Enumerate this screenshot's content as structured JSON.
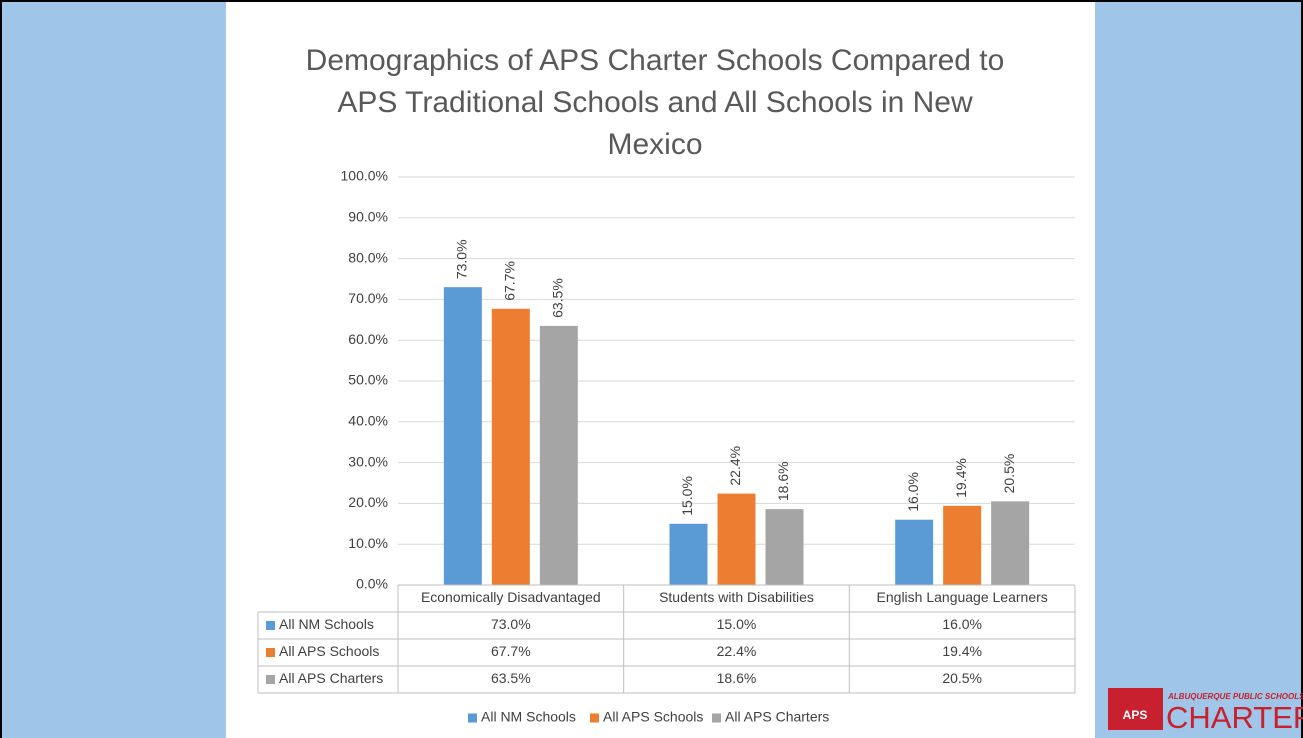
{
  "chart_data": {
    "type": "bar",
    "title": "Demographics of APS Charter Schools Compared to APS Traditional Schools and All Schools in New Mexico",
    "categories": [
      "Economically Disadvantaged",
      "Students with Disabilities",
      "English Language Learners"
    ],
    "series": [
      {
        "name": "All NM Schools",
        "color": "#5b9bd5",
        "values": [
          73.0,
          15.0,
          16.0
        ],
        "value_labels": [
          "73.0%",
          "15.0%",
          "16.0%"
        ]
      },
      {
        "name": "All APS Schools",
        "color": "#ed7d31",
        "values": [
          67.7,
          22.4,
          19.4
        ],
        "value_labels": [
          "67.7%",
          "22.4%",
          "19.4%"
        ]
      },
      {
        "name": "All APS Charters",
        "color": "#a5a5a5",
        "values": [
          63.5,
          18.6,
          20.5
        ],
        "value_labels": [
          "63.5%",
          "18.6%",
          "20.5%"
        ]
      }
    ],
    "ylim": [
      0,
      100
    ],
    "yticks": [
      {
        "value": 0,
        "label": "0.0%"
      },
      {
        "value": 10,
        "label": "10.0%"
      },
      {
        "value": 20,
        "label": "20.0%"
      },
      {
        "value": 30,
        "label": "30.0%"
      },
      {
        "value": 40,
        "label": "40.0%"
      },
      {
        "value": 50,
        "label": "50.0%"
      },
      {
        "value": 60,
        "label": "60.0%"
      },
      {
        "value": 70,
        "label": "70.0%"
      },
      {
        "value": 80,
        "label": "80.0%"
      },
      {
        "value": 90,
        "label": "90.0%"
      },
      {
        "value": 100,
        "label": "100.0%"
      }
    ],
    "grid": true,
    "legend": "bottom",
    "data_table": true
  },
  "logo": {
    "org": "ALBUQUERQUE PUBLIC SCHOOLS",
    "name": "CHARTERS",
    "badge": "APS"
  }
}
